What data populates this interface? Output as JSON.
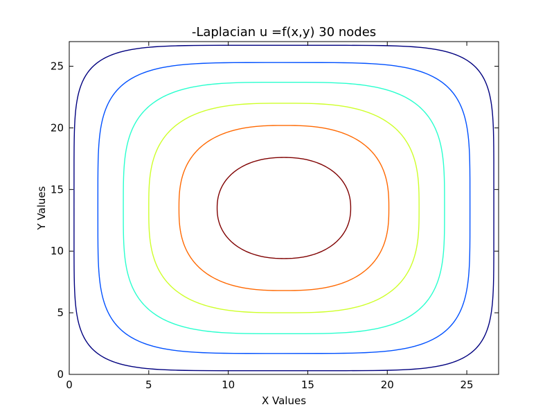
{
  "chart_data": {
    "type": "contour",
    "title": "-Laplacian u =f(x,y) 30 nodes",
    "xlabel": "X Values",
    "ylabel": "Y Values",
    "xlim": [
      0,
      27
    ],
    "ylim": [
      0,
      27
    ],
    "xticks": [
      0,
      5,
      10,
      15,
      20,
      25
    ],
    "yticks": [
      0,
      5,
      10,
      15,
      20,
      25
    ],
    "grid": false,
    "center": [
      13.5,
      13.5
    ],
    "levels": [
      {
        "name": "level-1",
        "color": "#00007f",
        "x_half_width": 13.2,
        "y_half_width": 13.2,
        "exponent": 6
      },
      {
        "name": "level-2",
        "color": "#0050ff",
        "x_half_width": 11.7,
        "y_half_width": 11.8,
        "exponent": 4.5
      },
      {
        "name": "level-3",
        "color": "#29ffce",
        "x_half_width": 10.1,
        "y_half_width": 10.2,
        "exponent": 3.6
      },
      {
        "name": "level-4",
        "color": "#ceff29",
        "x_half_width": 8.5,
        "y_half_width": 8.5,
        "exponent": 3.0
      },
      {
        "name": "level-5",
        "color": "#ff6800",
        "x_half_width": 6.6,
        "y_half_width": 6.7,
        "exponent": 2.6
      },
      {
        "name": "level-6",
        "color": "#7f0000",
        "x_half_width": 4.2,
        "y_half_width": 4.1,
        "exponent": 2.2
      }
    ]
  }
}
